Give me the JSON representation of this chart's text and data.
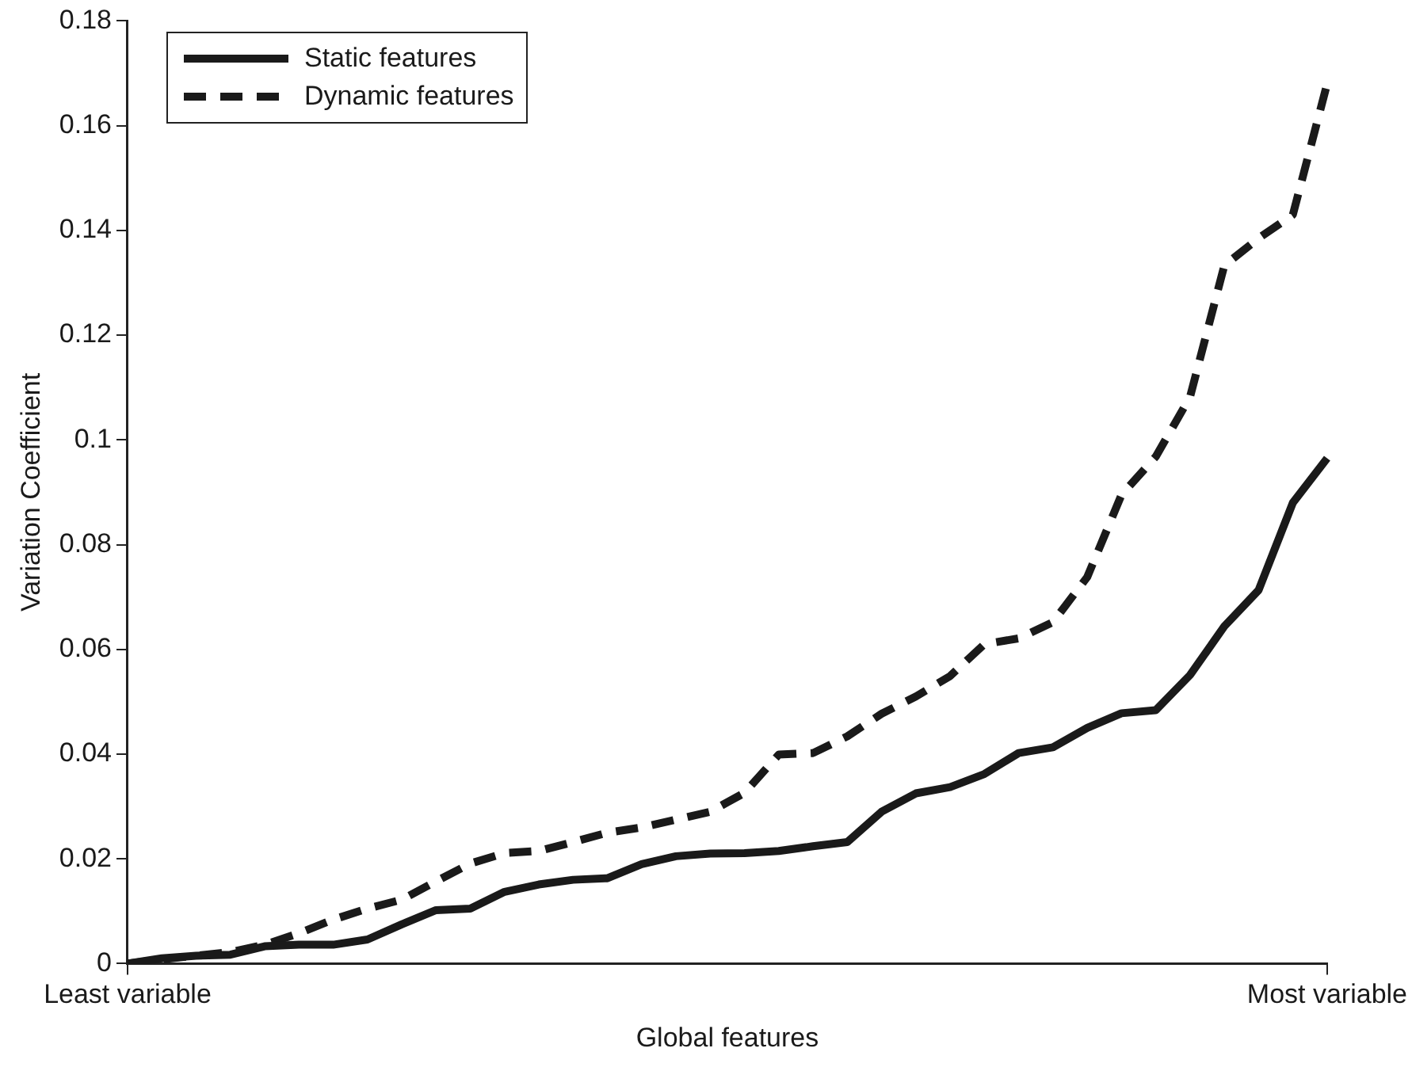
{
  "chart_data": {
    "type": "line",
    "xlabel": "Global features",
    "ylabel": "Variation Coefficient",
    "categories": [
      "Least variable",
      null,
      null,
      null,
      null,
      null,
      null,
      null,
      null,
      null,
      null,
      null,
      null,
      null,
      null,
      null,
      null,
      null,
      null,
      null,
      null,
      null,
      null,
      null,
      null,
      null,
      null,
      null,
      null,
      null,
      null,
      null,
      null,
      null,
      null,
      "Most variable"
    ],
    "ylim": [
      0,
      0.18
    ],
    "yticks": [
      0,
      0.02,
      0.04,
      0.06,
      0.08,
      0.1,
      0.12,
      0.14,
      0.16,
      0.18
    ],
    "grid": false,
    "legend": "top left",
    "marker": "none",
    "series": [
      {
        "name": "Static features",
        "color": "#1a1a1a",
        "line_style": "solid",
        "values": [
          0,
          0.001,
          0.0015,
          0.0017,
          0.0033,
          0.0036,
          0.0036,
          0.0046,
          0.0075,
          0.0102,
          0.0105,
          0.0137,
          0.0151,
          0.016,
          0.0163,
          0.019,
          0.0205,
          0.021,
          0.0211,
          0.0215,
          0.0224,
          0.0232,
          0.029,
          0.0325,
          0.0337,
          0.0362,
          0.0402,
          0.0413,
          0.045,
          0.0478,
          0.0484,
          0.0551,
          0.0644,
          0.0713,
          0.088,
          0.0965
        ]
      },
      {
        "name": "Dynamic features",
        "color": "#1a1a1a",
        "line_style": "dashed",
        "values": [
          0,
          0.0008,
          0.0015,
          0.0022,
          0.0036,
          0.0058,
          0.0084,
          0.0105,
          0.0122,
          0.0157,
          0.0191,
          0.0211,
          0.0215,
          0.0232,
          0.025,
          0.026,
          0.0275,
          0.029,
          0.0326,
          0.0399,
          0.0402,
          0.0434,
          0.0477,
          0.051,
          0.0549,
          0.061,
          0.0621,
          0.0652,
          0.0738,
          0.0895,
          0.0968,
          0.1082,
          0.1333,
          0.1385,
          0.143,
          0.168
        ]
      }
    ]
  }
}
